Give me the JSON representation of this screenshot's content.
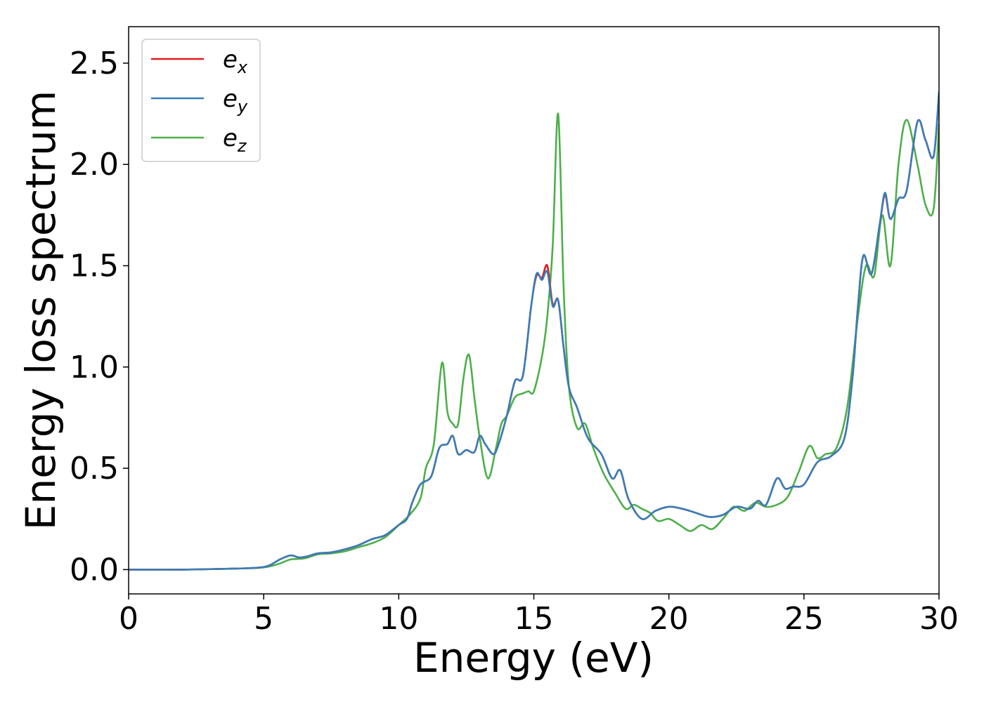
{
  "chart_data": {
    "type": "line",
    "title": "",
    "xlabel": "Energy (eV)",
    "ylabel": "Energy loss spectrum",
    "xlim": [
      0,
      30
    ],
    "ylim": [
      -0.12,
      2.68
    ],
    "xticks": [
      0,
      5,
      10,
      15,
      20,
      25,
      30
    ],
    "xtick_labels": [
      "0",
      "5",
      "10",
      "15",
      "20",
      "25",
      "30"
    ],
    "yticks": [
      0.0,
      0.5,
      1.0,
      1.5,
      2.0,
      2.5
    ],
    "ytick_labels": [
      "0.0",
      "0.5",
      "1.0",
      "1.5",
      "2.0",
      "2.5"
    ],
    "grid": false,
    "legend_position": "top-left",
    "series": [
      {
        "name": "e_x",
        "legend_main": "e",
        "legend_sub": "x",
        "color": "#e41a1c",
        "points": [
          [
            0,
            0
          ],
          [
            2,
            0
          ],
          [
            4,
            0.005
          ],
          [
            4.8,
            0.01
          ],
          [
            5.2,
            0.02
          ],
          [
            5.6,
            0.05
          ],
          [
            6.0,
            0.07
          ],
          [
            6.3,
            0.06
          ],
          [
            6.6,
            0.065
          ],
          [
            7.0,
            0.08
          ],
          [
            7.5,
            0.085
          ],
          [
            8.0,
            0.1
          ],
          [
            8.5,
            0.12
          ],
          [
            9.0,
            0.15
          ],
          [
            9.5,
            0.17
          ],
          [
            10.0,
            0.22
          ],
          [
            10.3,
            0.25
          ],
          [
            10.5,
            0.33
          ],
          [
            10.8,
            0.42
          ],
          [
            11.2,
            0.46
          ],
          [
            11.5,
            0.6
          ],
          [
            11.8,
            0.62
          ],
          [
            12.0,
            0.66
          ],
          [
            12.2,
            0.57
          ],
          [
            12.5,
            0.59
          ],
          [
            12.8,
            0.58
          ],
          [
            13.0,
            0.66
          ],
          [
            13.2,
            0.62
          ],
          [
            13.5,
            0.57
          ],
          [
            13.7,
            0.62
          ],
          [
            14.0,
            0.76
          ],
          [
            14.3,
            0.93
          ],
          [
            14.6,
            0.96
          ],
          [
            14.9,
            1.3
          ],
          [
            15.1,
            1.45
          ],
          [
            15.3,
            1.44
          ],
          [
            15.5,
            1.5
          ],
          [
            15.7,
            1.31
          ],
          [
            15.9,
            1.33
          ],
          [
            16.1,
            1.1
          ],
          [
            16.3,
            0.9
          ],
          [
            16.6,
            0.8
          ],
          [
            17.0,
            0.65
          ],
          [
            17.5,
            0.57
          ],
          [
            17.9,
            0.45
          ],
          [
            18.2,
            0.49
          ],
          [
            18.5,
            0.35
          ],
          [
            19.0,
            0.25
          ],
          [
            19.5,
            0.29
          ],
          [
            20.0,
            0.31
          ],
          [
            20.5,
            0.3
          ],
          [
            21.0,
            0.28
          ],
          [
            21.5,
            0.26
          ],
          [
            22.0,
            0.27
          ],
          [
            22.5,
            0.31
          ],
          [
            23.0,
            0.3
          ],
          [
            23.3,
            0.34
          ],
          [
            23.6,
            0.32
          ],
          [
            24.0,
            0.45
          ],
          [
            24.3,
            0.4
          ],
          [
            24.6,
            0.41
          ],
          [
            25.0,
            0.42
          ],
          [
            25.5,
            0.53
          ],
          [
            26.0,
            0.56
          ],
          [
            26.5,
            0.65
          ],
          [
            26.8,
            0.95
          ],
          [
            27.0,
            1.3
          ],
          [
            27.2,
            1.55
          ],
          [
            27.5,
            1.46
          ],
          [
            27.8,
            1.7
          ],
          [
            28.0,
            1.85
          ],
          [
            28.2,
            1.73
          ],
          [
            28.5,
            1.83
          ],
          [
            28.8,
            1.87
          ],
          [
            29.2,
            2.21
          ],
          [
            29.5,
            2.12
          ],
          [
            29.8,
            2.04
          ],
          [
            30.0,
            2.35
          ]
        ]
      },
      {
        "name": "e_y",
        "legend_main": "e",
        "legend_sub": "y",
        "color": "#377eb8",
        "points": [
          [
            0,
            0
          ],
          [
            2,
            0
          ],
          [
            4,
            0.005
          ],
          [
            4.8,
            0.01
          ],
          [
            5.2,
            0.02
          ],
          [
            5.6,
            0.05
          ],
          [
            6.0,
            0.07
          ],
          [
            6.3,
            0.06
          ],
          [
            6.6,
            0.065
          ],
          [
            7.0,
            0.08
          ],
          [
            7.5,
            0.085
          ],
          [
            8.0,
            0.1
          ],
          [
            8.5,
            0.12
          ],
          [
            9.0,
            0.15
          ],
          [
            9.5,
            0.17
          ],
          [
            10.0,
            0.22
          ],
          [
            10.3,
            0.25
          ],
          [
            10.5,
            0.33
          ],
          [
            10.8,
            0.42
          ],
          [
            11.2,
            0.46
          ],
          [
            11.5,
            0.6
          ],
          [
            11.8,
            0.62
          ],
          [
            12.0,
            0.66
          ],
          [
            12.2,
            0.57
          ],
          [
            12.5,
            0.59
          ],
          [
            12.8,
            0.58
          ],
          [
            13.0,
            0.66
          ],
          [
            13.2,
            0.62
          ],
          [
            13.5,
            0.57
          ],
          [
            13.7,
            0.62
          ],
          [
            14.0,
            0.76
          ],
          [
            14.3,
            0.93
          ],
          [
            14.6,
            0.96
          ],
          [
            14.9,
            1.3
          ],
          [
            15.1,
            1.46
          ],
          [
            15.3,
            1.43
          ],
          [
            15.5,
            1.47
          ],
          [
            15.7,
            1.3
          ],
          [
            15.9,
            1.33
          ],
          [
            16.1,
            1.1
          ],
          [
            16.3,
            0.9
          ],
          [
            16.6,
            0.8
          ],
          [
            17.0,
            0.65
          ],
          [
            17.5,
            0.57
          ],
          [
            17.9,
            0.45
          ],
          [
            18.2,
            0.49
          ],
          [
            18.5,
            0.35
          ],
          [
            19.0,
            0.25
          ],
          [
            19.5,
            0.29
          ],
          [
            20.0,
            0.31
          ],
          [
            20.5,
            0.3
          ],
          [
            21.0,
            0.28
          ],
          [
            21.5,
            0.26
          ],
          [
            22.0,
            0.27
          ],
          [
            22.5,
            0.31
          ],
          [
            23.0,
            0.3
          ],
          [
            23.3,
            0.34
          ],
          [
            23.6,
            0.32
          ],
          [
            24.0,
            0.45
          ],
          [
            24.3,
            0.4
          ],
          [
            24.6,
            0.41
          ],
          [
            25.0,
            0.42
          ],
          [
            25.5,
            0.53
          ],
          [
            26.0,
            0.56
          ],
          [
            26.5,
            0.65
          ],
          [
            26.8,
            0.95
          ],
          [
            27.0,
            1.3
          ],
          [
            27.2,
            1.55
          ],
          [
            27.5,
            1.46
          ],
          [
            27.8,
            1.7
          ],
          [
            28.0,
            1.86
          ],
          [
            28.2,
            1.73
          ],
          [
            28.5,
            1.83
          ],
          [
            28.8,
            1.87
          ],
          [
            29.2,
            2.21
          ],
          [
            29.5,
            2.12
          ],
          [
            29.8,
            2.04
          ],
          [
            30.0,
            2.36
          ]
        ]
      },
      {
        "name": "e_z",
        "legend_main": "e",
        "legend_sub": "z",
        "color": "#4daf4a",
        "points": [
          [
            0,
            0
          ],
          [
            2,
            0
          ],
          [
            4,
            0.005
          ],
          [
            4.8,
            0.008
          ],
          [
            5.2,
            0.015
          ],
          [
            5.6,
            0.03
          ],
          [
            6.0,
            0.05
          ],
          [
            6.5,
            0.055
          ],
          [
            7.0,
            0.075
          ],
          [
            7.5,
            0.08
          ],
          [
            8.0,
            0.09
          ],
          [
            8.5,
            0.11
          ],
          [
            9.0,
            0.13
          ],
          [
            9.5,
            0.16
          ],
          [
            10.0,
            0.22
          ],
          [
            10.4,
            0.27
          ],
          [
            10.8,
            0.35
          ],
          [
            11.0,
            0.5
          ],
          [
            11.3,
            0.62
          ],
          [
            11.6,
            1.02
          ],
          [
            11.8,
            0.78
          ],
          [
            12.0,
            0.72
          ],
          [
            12.2,
            0.72
          ],
          [
            12.4,
            0.95
          ],
          [
            12.6,
            1.06
          ],
          [
            12.8,
            0.85
          ],
          [
            13.0,
            0.65
          ],
          [
            13.3,
            0.45
          ],
          [
            13.6,
            0.6
          ],
          [
            13.8,
            0.72
          ],
          [
            14.0,
            0.76
          ],
          [
            14.3,
            0.85
          ],
          [
            14.6,
            0.87
          ],
          [
            14.8,
            0.88
          ],
          [
            15.0,
            0.88
          ],
          [
            15.3,
            1.05
          ],
          [
            15.5,
            1.25
          ],
          [
            15.7,
            1.6
          ],
          [
            15.9,
            2.25
          ],
          [
            16.1,
            1.4
          ],
          [
            16.3,
            0.9
          ],
          [
            16.6,
            0.7
          ],
          [
            16.9,
            0.72
          ],
          [
            17.2,
            0.6
          ],
          [
            17.6,
            0.47
          ],
          [
            18.0,
            0.38
          ],
          [
            18.4,
            0.3
          ],
          [
            18.7,
            0.32
          ],
          [
            19.0,
            0.3
          ],
          [
            19.3,
            0.28
          ],
          [
            19.6,
            0.24
          ],
          [
            20.0,
            0.25
          ],
          [
            20.4,
            0.22
          ],
          [
            20.8,
            0.19
          ],
          [
            21.2,
            0.22
          ],
          [
            21.6,
            0.2
          ],
          [
            22.0,
            0.25
          ],
          [
            22.4,
            0.31
          ],
          [
            22.8,
            0.29
          ],
          [
            23.2,
            0.33
          ],
          [
            23.6,
            0.31
          ],
          [
            24.0,
            0.32
          ],
          [
            24.4,
            0.36
          ],
          [
            24.8,
            0.48
          ],
          [
            25.2,
            0.61
          ],
          [
            25.5,
            0.55
          ],
          [
            25.8,
            0.57
          ],
          [
            26.2,
            0.6
          ],
          [
            26.6,
            0.8
          ],
          [
            27.0,
            1.25
          ],
          [
            27.3,
            1.5
          ],
          [
            27.6,
            1.45
          ],
          [
            27.9,
            1.75
          ],
          [
            28.2,
            1.5
          ],
          [
            28.5,
            2.0
          ],
          [
            28.8,
            2.22
          ],
          [
            29.2,
            2.0
          ],
          [
            29.5,
            1.8
          ],
          [
            29.8,
            1.78
          ],
          [
            30.0,
            2.2
          ]
        ]
      }
    ]
  }
}
